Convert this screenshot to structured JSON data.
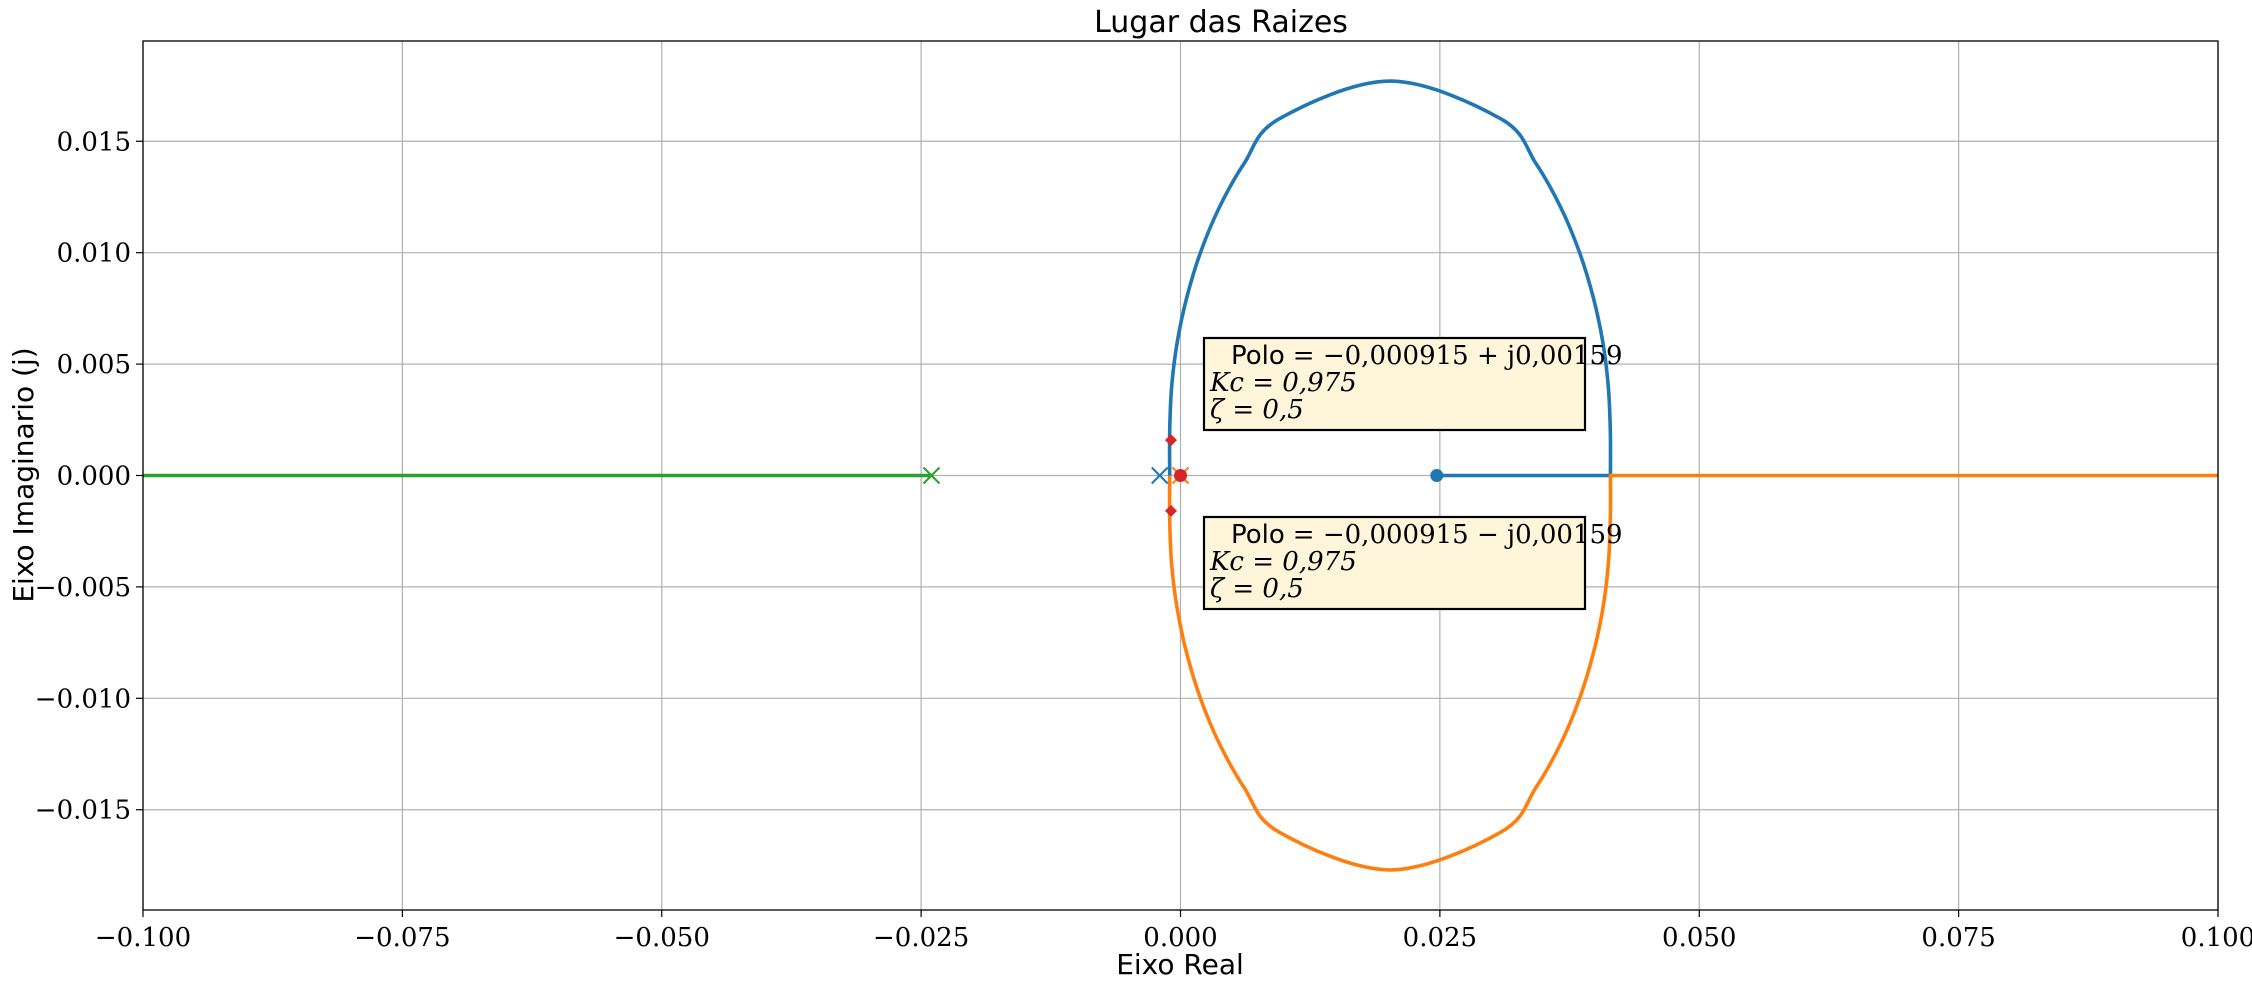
{
  "chart_data": {
    "type": "line",
    "title": "Lugar das Raizes",
    "xlabel": "Eixo Real",
    "ylabel": "Eixo Imaginario (j)",
    "xlim": [
      -0.1,
      0.1
    ],
    "ylim": [
      -0.0195,
      0.0195
    ],
    "grid": true,
    "xticks": [
      -0.1,
      -0.075,
      -0.05,
      -0.025,
      0,
      0.025,
      0.05,
      0.075,
      0.1
    ],
    "xtick_labels": [
      "−0.100",
      "−0.075",
      "−0.050",
      "−0.025",
      "0.000",
      "0.025",
      "0.050",
      "0.075",
      "0.100"
    ],
    "yticks": [
      0.015,
      0.01,
      0.005,
      0,
      -0.005,
      -0.01,
      -0.015
    ],
    "ytick_labels": [
      "0.015",
      "0.010",
      "0.005",
      "0.000",
      "−0.005",
      "−0.010",
      "−0.015"
    ],
    "colors": {
      "branch_upper": "#1f77b4",
      "branch_lower": "#ff7f0e",
      "branch_negative": "#2ca02c",
      "marker_red": "#d62728",
      "annotation_fill": "#fff5da"
    },
    "series": [
      {
        "color": "#1f77b4",
        "points": [
          [
            -0.00104,
            0
          ],
          [
            -0.00104,
            0.002
          ],
          [
            -0.00085,
            0.004
          ],
          [
            -0.00031,
            0.006
          ],
          [
            0.00061,
            0.008
          ],
          [
            0.00192,
            0.01
          ],
          [
            0.00371,
            0.012
          ],
          [
            0.00613,
            0.014
          ],
          [
            0.00949,
            0.016
          ],
          [
            0.0202,
            0.0177
          ],
          [
            0.0309,
            0.016
          ],
          [
            0.03426,
            0.014
          ],
          [
            0.03668,
            0.012
          ],
          [
            0.03847,
            0.01
          ],
          [
            0.03978,
            0.008
          ],
          [
            0.0407,
            0.006
          ],
          [
            0.04123,
            0.004
          ],
          [
            0.04143,
            0.002
          ],
          [
            0.04144,
            0
          ],
          [
            0.0247,
            0
          ]
        ]
      },
      {
        "color": "#ff7f0e",
        "points": [
          [
            -0.00104,
            0
          ],
          [
            -0.00104,
            -0.002
          ],
          [
            -0.00085,
            -0.004
          ],
          [
            -0.00031,
            -0.006
          ],
          [
            0.00061,
            -0.008
          ],
          [
            0.00192,
            -0.01
          ],
          [
            0.00371,
            -0.012
          ],
          [
            0.00613,
            -0.014
          ],
          [
            0.00949,
            -0.016
          ],
          [
            0.0202,
            -0.0177
          ],
          [
            0.0309,
            -0.016
          ],
          [
            0.03426,
            -0.014
          ],
          [
            0.03668,
            -0.012
          ],
          [
            0.03847,
            -0.01
          ],
          [
            0.03978,
            -0.008
          ],
          [
            0.0407,
            -0.006
          ],
          [
            0.04123,
            -0.004
          ],
          [
            0.04143,
            -0.002
          ],
          [
            0.04144,
            0
          ],
          [
            0.1,
            0
          ]
        ]
      },
      {
        "color": "#2ca02c",
        "points": [
          [
            -0.024,
            0
          ],
          [
            -0.1,
            0
          ]
        ]
      }
    ],
    "poles": [
      {
        "x": -0.024,
        "y": 0,
        "color": "#2ca02c"
      },
      {
        "x": -0.002,
        "y": 0,
        "color": "#1f77b4"
      },
      {
        "x": 0.0,
        "y": 0,
        "color": "#ff7f0e"
      }
    ],
    "zeros": [
      {
        "x": 0.0247,
        "y": 0,
        "color": "#1f77b4"
      },
      {
        "x": 0.0,
        "y": 0,
        "color": "#d62728"
      }
    ],
    "selected_points": [
      {
        "x": -0.000915,
        "y": 0.00159,
        "color": "#d62728"
      },
      {
        "x": -0.000915,
        "y": -0.00159,
        "color": "#d62728"
      }
    ],
    "annotations": [
      {
        "anchor": "upper",
        "line1_word": "Polo",
        "line1_expr": "= −0,000915 + j0,00159",
        "line2": "Kc = 0,975",
        "line3": "ζ = 0,5"
      },
      {
        "anchor": "lower",
        "line1_word": "Polo",
        "line1_expr": "= −0,000915 − j0,00159",
        "line2": "Kc = 0,975",
        "line3": "ζ = 0,5"
      }
    ]
  }
}
